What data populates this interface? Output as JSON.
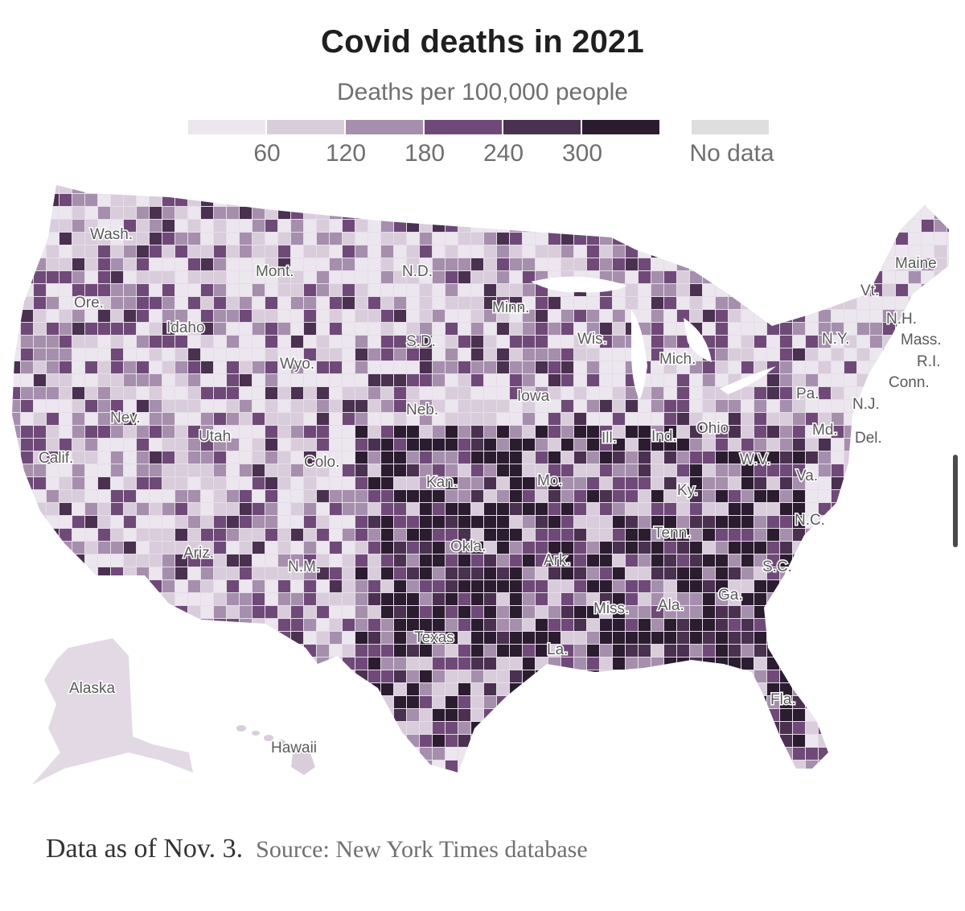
{
  "title": "Covid deaths in 2021",
  "subtitle": "Deaths per 100,000 people",
  "legend": {
    "colors": [
      "#ece6ee",
      "#d9cddc",
      "#a68fad",
      "#6f4a78",
      "#4a3150",
      "#2b1c30"
    ],
    "ticks": [
      "60",
      "120",
      "180",
      "240",
      "300"
    ],
    "nodata_label": "No data",
    "nodata_color": "#dedede"
  },
  "map": {
    "states": {
      "wash": "Wash.",
      "ore": "Ore.",
      "calif": "Calif.",
      "nev": "Nev.",
      "idaho": "Idaho",
      "mont": "Mont.",
      "wyo": "Wyo.",
      "utah": "Utah",
      "colo": "Colo.",
      "ariz": "Ariz.",
      "nm": "N.M.",
      "nd": "N.D.",
      "sd": "S.D.",
      "neb": "Neb.",
      "kan": "Kan.",
      "okla": "Okla.",
      "texas": "Texas",
      "minn": "Minn.",
      "iowa": "Iowa",
      "mo": "Mo.",
      "ark": "Ark.",
      "la": "La.",
      "wis": "Wis.",
      "ill": "Ill.",
      "mich": "Mich.",
      "ind": "Ind.",
      "ohio": "Ohio",
      "ky": "Ky.",
      "tenn": "Tenn.",
      "miss": "Miss.",
      "ala": "Ala.",
      "ga": "Ga.",
      "fla": "Fla.",
      "sc": "S.C.",
      "nc": "N.C.",
      "va": "Va.",
      "wv": "W.V.",
      "pa": "Pa.",
      "ny": "N.Y.",
      "vt": "Vt.",
      "nh": "N.H.",
      "maine": "Maine",
      "mass": "Mass.",
      "ri": "R.I.",
      "conn": "Conn.",
      "nj": "N.J.",
      "del": "Del.",
      "md": "Md.",
      "alaska": "Alaska",
      "hawaii": "Hawaii"
    }
  },
  "footer": {
    "note": "Data as of Nov. 3.",
    "source": "Source: New York Times database"
  }
}
